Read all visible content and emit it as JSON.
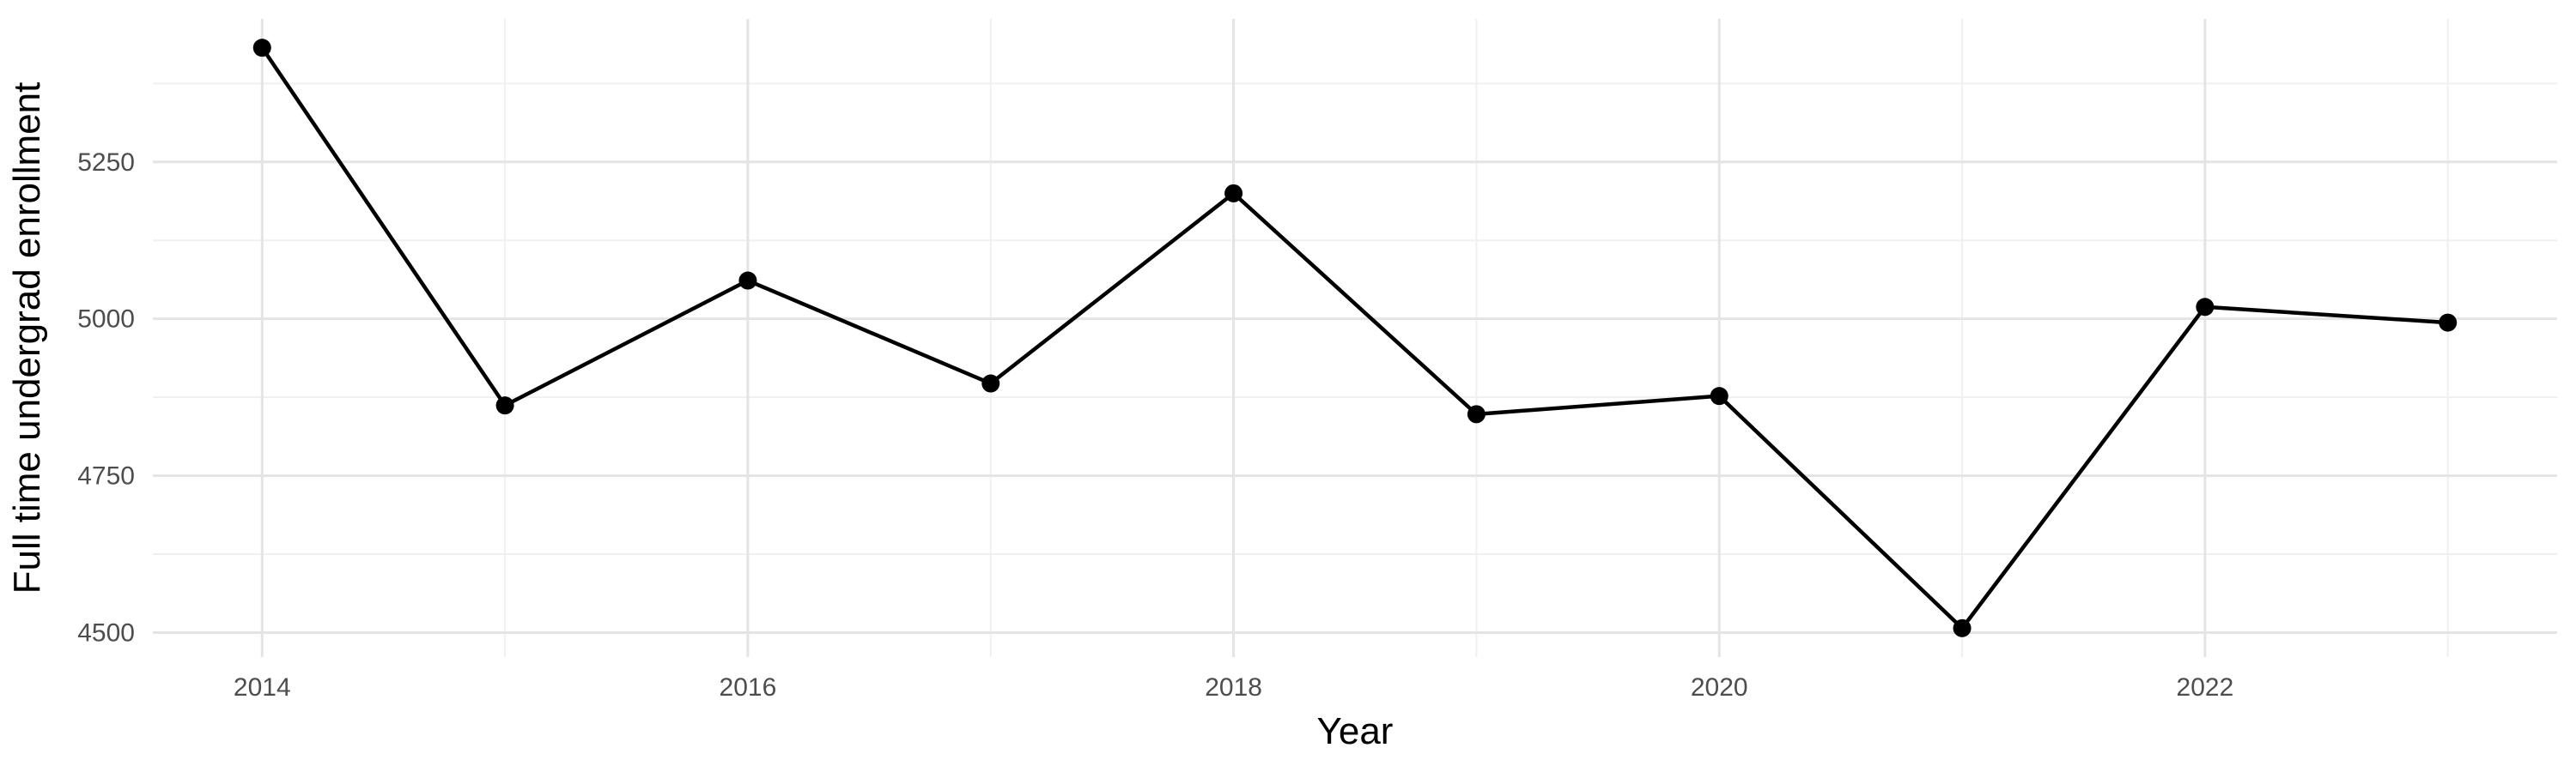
{
  "chart_data": {
    "type": "line",
    "title": "",
    "xlabel": "Year",
    "ylabel": "Full time undergrad enrollment",
    "x": [
      2014,
      2015,
      2016,
      2017,
      2018,
      2019,
      2020,
      2021,
      2022,
      2023
    ],
    "series": [
      {
        "name": "Full time undergrad enrollment",
        "values": [
          5432,
          4862,
          5061,
          4897,
          5200,
          4848,
          4877,
          4507,
          5019,
          4994
        ]
      }
    ],
    "xlim": [
      2013.55,
      2023.45
    ],
    "ylim": [
      4461,
      5478
    ],
    "x_major_ticks": [
      2014,
      2016,
      2018,
      2020,
      2022
    ],
    "x_minor_ticks": [
      2015,
      2017,
      2019,
      2021,
      2023
    ],
    "y_major_ticks": [
      4500,
      4750,
      5000,
      5250
    ],
    "y_minor_ticks": [
      4625,
      4875,
      5125,
      5375
    ],
    "grid": true,
    "legend": false,
    "style": {
      "background_color": "#ffffff",
      "line_color": "#000000",
      "marker": "circle",
      "marker_radius": 10.5,
      "line_width": 4.5,
      "grid_major_color": "#e4e4e4",
      "grid_minor_color": "#f0f0f0",
      "grid_major_width": 3,
      "grid_minor_width": 2,
      "tick_label_color": "#4d4d4d",
      "axis_title_color": "#000000"
    }
  }
}
